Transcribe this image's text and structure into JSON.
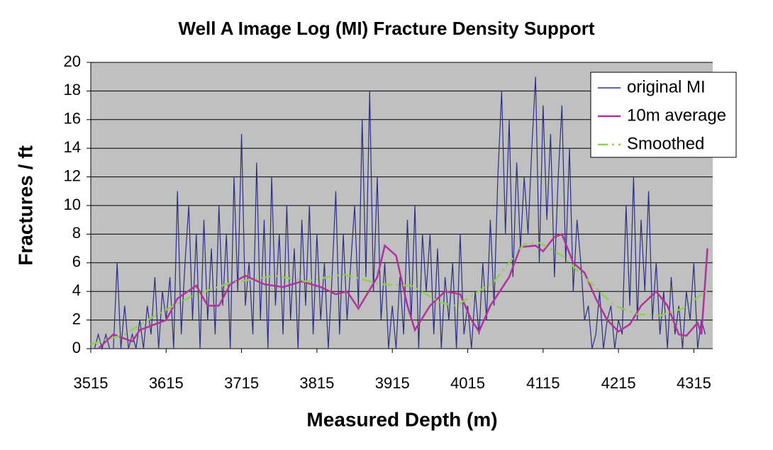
{
  "chart_data": {
    "type": "line",
    "title": "Well A  Image Log (MI) Fracture Density Support",
    "x_label": "Measured Depth (m)",
    "y_label": "Fractures / ft",
    "xlim": [
      3515,
      4340
    ],
    "xticks": [
      3515,
      3615,
      3715,
      3815,
      3915,
      4015,
      4115,
      4215,
      4315
    ],
    "ylim": [
      0,
      20
    ],
    "yticks": [
      0,
      2,
      4,
      6,
      8,
      10,
      12,
      14,
      16,
      18,
      20
    ],
    "grid": true,
    "legend": "upper right",
    "series": [
      {
        "name": "original MI",
        "color": "#2e2e86",
        "style": "solid",
        "x": [
          3515,
          3520,
          3525,
          3530,
          3535,
          3540,
          3545,
          3550,
          3555,
          3560,
          3565,
          3570,
          3575,
          3580,
          3585,
          3590,
          3595,
          3600,
          3605,
          3610,
          3615,
          3620,
          3625,
          3630,
          3635,
          3640,
          3645,
          3650,
          3655,
          3660,
          3665,
          3670,
          3675,
          3680,
          3685,
          3690,
          3695,
          3700,
          3705,
          3710,
          3715,
          3720,
          3725,
          3730,
          3735,
          3740,
          3745,
          3750,
          3755,
          3760,
          3765,
          3770,
          3775,
          3780,
          3785,
          3790,
          3795,
          3800,
          3805,
          3810,
          3815,
          3820,
          3825,
          3830,
          3835,
          3840,
          3845,
          3850,
          3855,
          3860,
          3865,
          3870,
          3875,
          3880,
          3885,
          3890,
          3895,
          3900,
          3905,
          3910,
          3915,
          3920,
          3925,
          3930,
          3935,
          3940,
          3945,
          3950,
          3955,
          3960,
          3965,
          3970,
          3975,
          3980,
          3985,
          3990,
          3995,
          4000,
          4005,
          4010,
          4015,
          4020,
          4025,
          4030,
          4035,
          4040,
          4045,
          4050,
          4055,
          4060,
          4065,
          4070,
          4075,
          4080,
          4085,
          4090,
          4095,
          4100,
          4105,
          4110,
          4115,
          4120,
          4125,
          4130,
          4135,
          4140,
          4145,
          4150,
          4155,
          4160,
          4165,
          4170,
          4175,
          4180,
          4185,
          4190,
          4195,
          4200,
          4205,
          4210,
          4215,
          4220,
          4225,
          4230,
          4235,
          4240,
          4245,
          4250,
          4255,
          4260,
          4265,
          4270,
          4275,
          4280,
          4285,
          4290,
          4295,
          4300,
          4305,
          4310,
          4315,
          4320,
          4325,
          4330
        ],
        "values": [
          0,
          0,
          1,
          0,
          1,
          0,
          0,
          6,
          0,
          3,
          0,
          1,
          0,
          2,
          0,
          3,
          1,
          5,
          0,
          4,
          2,
          5,
          0,
          11,
          1,
          6,
          10,
          2,
          8,
          0,
          9,
          2,
          7,
          1,
          10,
          3,
          8,
          0,
          12,
          4,
          15,
          3,
          6,
          1,
          13,
          2,
          9,
          0,
          12,
          3,
          8,
          1,
          10,
          2,
          7,
          0,
          9,
          3,
          10,
          1,
          8,
          2,
          6,
          0,
          5,
          11,
          1,
          8,
          2,
          6,
          10,
          3,
          16,
          5,
          18,
          4,
          12,
          2,
          6,
          0,
          3,
          0,
          5,
          1,
          9,
          2,
          10,
          0,
          8,
          4,
          8,
          1,
          7,
          0,
          5,
          2,
          6,
          0,
          8,
          1,
          3,
          0,
          4,
          1,
          6,
          2,
          9,
          3,
          12,
          18,
          8,
          16,
          5,
          13,
          7,
          12,
          8,
          14,
          19,
          6,
          17,
          9,
          15,
          5,
          12,
          17,
          6,
          14,
          4,
          9,
          6,
          2,
          3,
          0,
          1,
          4,
          0,
          2,
          3,
          0,
          2,
          1,
          10,
          3,
          12,
          2,
          9,
          4,
          11,
          2,
          6,
          1,
          4,
          0,
          5,
          1,
          3,
          0,
          4,
          2,
          6,
          0,
          2,
          1
        ]
      },
      {
        "name": "10m average",
        "color": "#b2329c",
        "style": "solid",
        "x": [
          3525,
          3545,
          3570,
          3580,
          3600,
          3615,
          3630,
          3655,
          3670,
          3685,
          3700,
          3720,
          3745,
          3770,
          3795,
          3820,
          3840,
          3855,
          3870,
          3895,
          3905,
          3920,
          3935,
          3945,
          3965,
          3985,
          4005,
          4020,
          4030,
          4045,
          4070,
          4085,
          4105,
          4115,
          4130,
          4140,
          4155,
          4170,
          4185,
          4200,
          4215,
          4230,
          4245,
          4265,
          4280,
          4295,
          4305,
          4320,
          4325,
          4333
        ],
        "values": [
          0,
          1,
          0.5,
          1.3,
          1.7,
          2,
          3.5,
          4.4,
          3,
          3,
          4.5,
          5.1,
          4.5,
          4.3,
          4.7,
          4.3,
          3.8,
          4,
          2.8,
          5,
          7.2,
          6.5,
          3,
          1.3,
          3,
          4,
          3.8,
          2,
          1.2,
          3,
          5,
          7.1,
          7.2,
          6.8,
          7.8,
          8,
          6,
          5.3,
          3.5,
          2,
          1.2,
          1.7,
          3,
          4,
          3,
          1,
          0.9,
          1.8,
          1,
          7
        ]
      },
      {
        "name": "Smoothed",
        "color": "#8fd14f",
        "style": "dashdot",
        "x": [
          3515,
          3560,
          3600,
          3650,
          3700,
          3760,
          3800,
          3850,
          3900,
          3940,
          3980,
          4000,
          4050,
          4090,
          4110,
          4140,
          4180,
          4210,
          4240,
          4270,
          4300,
          4333
        ],
        "values": [
          0.3,
          1,
          2.3,
          3.7,
          4.6,
          5.1,
          4.7,
          5.2,
          4.5,
          4.4,
          3.2,
          3,
          4.7,
          7.3,
          7.4,
          6.5,
          4.5,
          3,
          2.4,
          2.3,
          2.8,
          4.1
        ]
      }
    ]
  }
}
